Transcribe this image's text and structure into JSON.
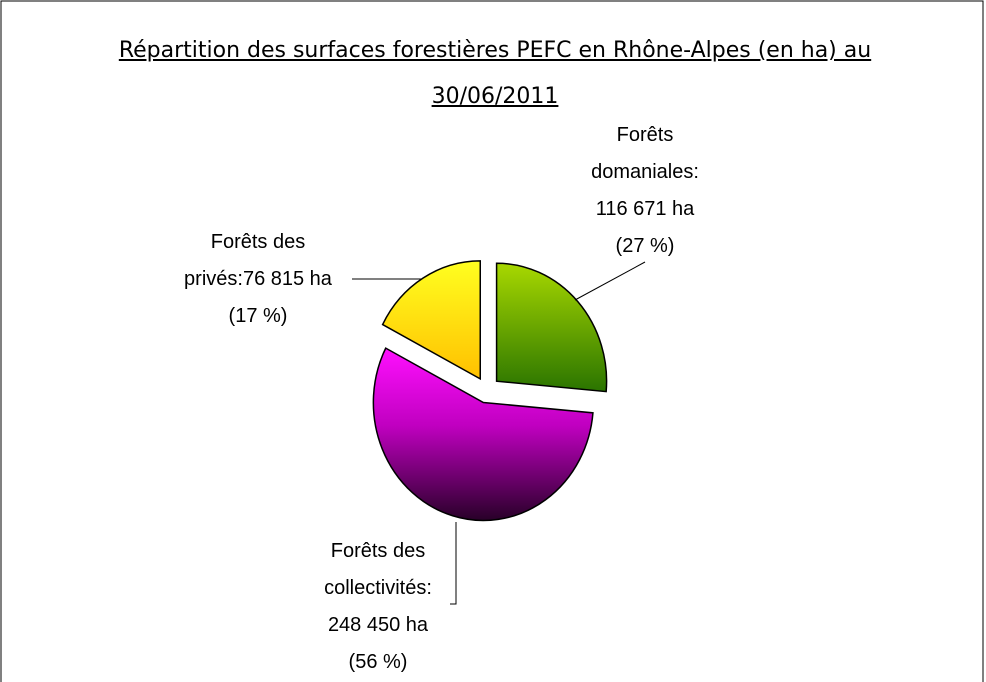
{
  "chart_data": {
    "type": "pie",
    "title": "Répartition des surfaces forestières PEFC en Rhône-Alpes (en ha) au 30/06/2011",
    "categories": [
      "Forêts domaniales:",
      "Forêts des collectivités:",
      "Forêts des privés:"
    ],
    "values": [
      116671,
      248450,
      76815
    ],
    "value_labels": [
      "116 671 ha",
      "248 450 ha",
      "76 815 ha"
    ],
    "percent_labels": [
      "(27 %)",
      "(56 %)",
      "(17 %)"
    ],
    "exploded": true
  }
}
